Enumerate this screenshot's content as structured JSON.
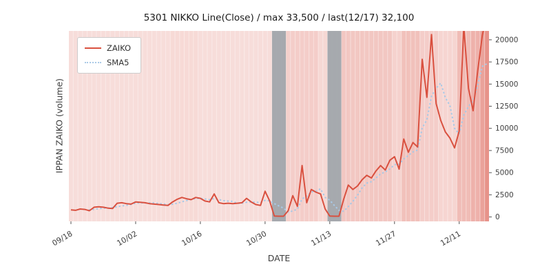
{
  "title": "5301 NIKKO Line(Close) / max 33,500 / last(12/17) 32,100",
  "xlabel": "DATE",
  "ylabel": "IPPAN ZAIKO (volume)",
  "legend": {
    "zaiko_label": "ZAIKO",
    "sma5_label": "SMA5",
    "position": "upper left"
  },
  "colors": {
    "zaiko_line": "#d9503f",
    "sma5_line": "#a9c9e6",
    "band_base_rgb": "214,72,56",
    "gray_band": "#9ca3a9",
    "tick_text": "#3d3d3d",
    "grid_line": "#ffffff"
  },
  "chart_data": {
    "type": "line",
    "title": "5301 NIKKO Line(Close) / max 33,500 / last(12/17) 32,100",
    "xlabel": "DATE",
    "ylabel": "IPPAN ZAIKO (volume)",
    "legend_entries": [
      "ZAIKO",
      "SMA5"
    ],
    "ylim": [
      -500,
      21000
    ],
    "yticks": [
      0,
      2500,
      5000,
      7500,
      10000,
      12500,
      15000,
      17500,
      20000
    ],
    "x_tick_labels": [
      "09/18",
      "10/02",
      "10/16",
      "10/30",
      "11/13",
      "11/27",
      "12/11"
    ],
    "x_tick_indices": [
      0,
      14,
      28,
      42,
      56,
      70,
      84
    ],
    "dates": [
      "09/18",
      "09/19",
      "09/20",
      "09/21",
      "09/22",
      "09/23",
      "09/24",
      "09/25",
      "09/26",
      "09/27",
      "09/28",
      "09/29",
      "09/30",
      "10/01",
      "10/02",
      "10/03",
      "10/04",
      "10/05",
      "10/06",
      "10/07",
      "10/08",
      "10/09",
      "10/10",
      "10/11",
      "10/12",
      "10/13",
      "10/14",
      "10/15",
      "10/16",
      "10/17",
      "10/18",
      "10/19",
      "10/20",
      "10/21",
      "10/22",
      "10/23",
      "10/24",
      "10/25",
      "10/26",
      "10/27",
      "10/28",
      "10/29",
      "10/30",
      "10/31",
      "11/01",
      "11/02",
      "11/03",
      "11/04",
      "11/05",
      "11/06",
      "11/07",
      "11/08",
      "11/09",
      "11/10",
      "11/11",
      "11/12",
      "11/13",
      "11/14",
      "11/15",
      "11/16",
      "11/17",
      "11/18",
      "11/19",
      "11/20",
      "11/21",
      "11/22",
      "11/23",
      "11/24",
      "11/25",
      "11/26",
      "11/27",
      "11/28",
      "11/29",
      "11/30",
      "12/01",
      "12/02",
      "12/03",
      "12/04",
      "12/05",
      "12/06",
      "12/07",
      "12/08",
      "12/09",
      "12/10",
      "12/11",
      "12/12",
      "12/13",
      "12/14",
      "12/15",
      "12/16",
      "12/17"
    ],
    "series": [
      {
        "name": "ZAIKO",
        "values": [
          800,
          750,
          900,
          850,
          700,
          1100,
          1150,
          1100,
          1000,
          950,
          1550,
          1600,
          1500,
          1450,
          1700,
          1650,
          1600,
          1500,
          1450,
          1400,
          1350,
          1300,
          1700,
          2000,
          2200,
          2050,
          1950,
          2200,
          2100,
          1800,
          1700,
          2600,
          1600,
          1500,
          1550,
          1500,
          1550,
          1600,
          2100,
          1700,
          1400,
          1300,
          2900,
          1800,
          100,
          80,
          80,
          700,
          2400,
          1200,
          5800,
          1600,
          3100,
          2800,
          2600,
          900,
          100,
          80,
          80,
          2000,
          3600,
          3100,
          3500,
          4200,
          4700,
          4400,
          5200,
          5800,
          5300,
          6400,
          6800,
          5400,
          8800,
          7300,
          8400,
          7900,
          17800,
          13500,
          20600,
          12800,
          10900,
          9600,
          8900,
          7800,
          9700,
          21500,
          14500,
          12000,
          16500,
          20500,
          23000
        ]
      },
      {
        "name": "SMA5",
        "type": "moving_average",
        "window": 5,
        "source": "ZAIKO"
      }
    ],
    "gray_spans": [
      [
        44,
        46
      ],
      [
        56,
        58
      ]
    ],
    "day_band_heat": [
      0.06,
      0.06,
      0.06,
      0.06,
      0.06,
      0.06,
      0.06,
      0.06,
      0.06,
      0.06,
      0.06,
      0.06,
      0.06,
      0.06,
      0.06,
      0.06,
      0.06,
      0.06,
      0.06,
      0.06,
      0.06,
      0.06,
      0.1,
      0.1,
      0.1,
      0.1,
      0.1,
      0.1,
      0.06,
      0.06,
      0.06,
      0.06,
      0.06,
      0.06,
      0.06,
      0.06,
      0.06,
      0.06,
      0.06,
      0.06,
      0.06,
      0.06,
      0.06,
      0.06,
      0.06,
      0.06,
      0.06,
      0.2,
      0.22,
      0.22,
      0.22,
      0.22,
      0.22,
      0.22,
      0.12,
      0.12,
      0.06,
      0.06,
      0.06,
      0.28,
      0.28,
      0.28,
      0.28,
      0.28,
      0.28,
      0.28,
      0.28,
      0.28,
      0.28,
      0.28,
      0.18,
      0.18,
      0.35,
      0.35,
      0.35,
      0.35,
      0.22,
      0.22,
      0.22,
      0.22,
      0.15,
      0.15,
      0.15,
      0.15,
      0.4,
      0.4,
      0.4,
      0.5,
      0.5,
      0.65,
      0.8
    ]
  }
}
